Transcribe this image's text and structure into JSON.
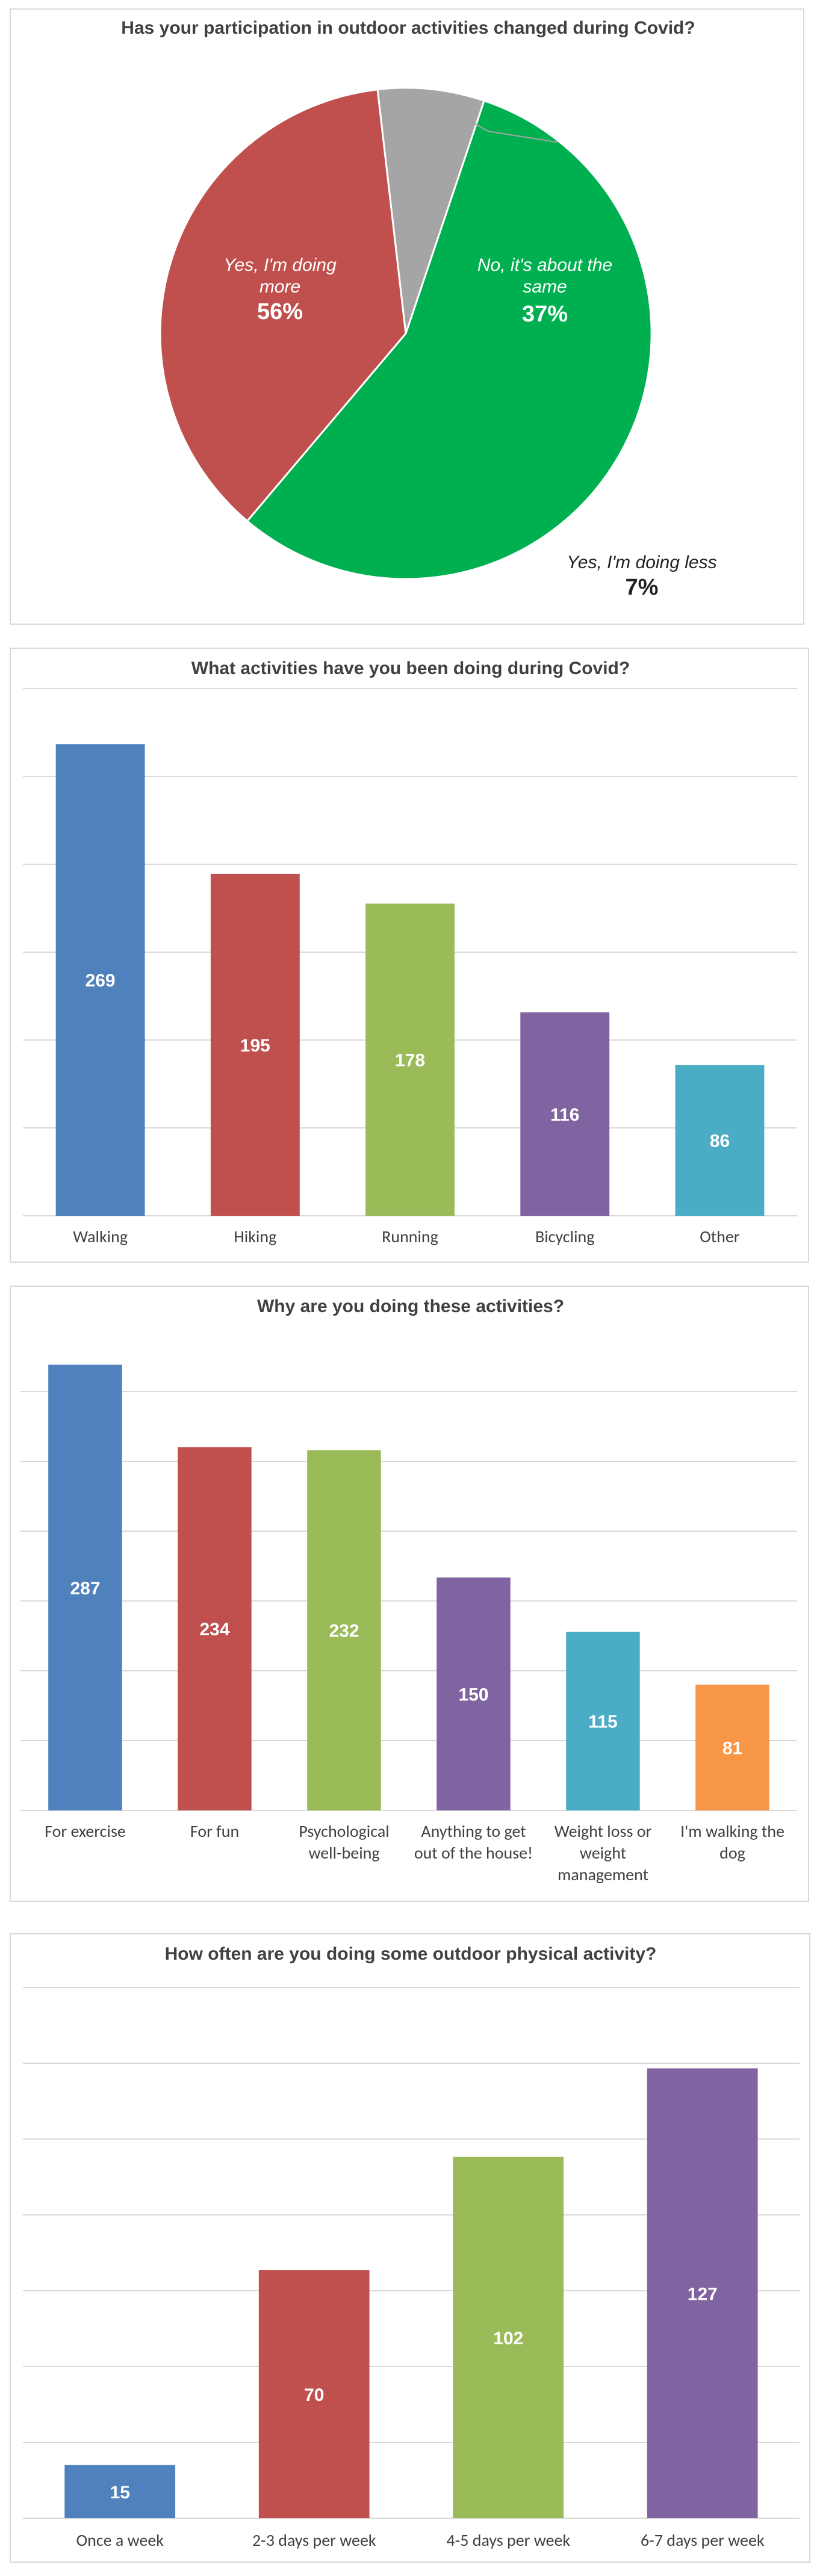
{
  "chart_data": [
    {
      "type": "pie",
      "title": "Has your participation in outdoor activities changed during Covid?",
      "slices": [
        {
          "label_lines": [
            "Yes, I'm doing",
            "more"
          ],
          "value": 56,
          "display": "56%",
          "color": "#00b050"
        },
        {
          "label_lines": [
            "No, it's about the",
            "same"
          ],
          "value": 37,
          "display": "37%",
          "color": "#c0504d"
        },
        {
          "label_lines": [
            "Yes, I'm doing less"
          ],
          "value": 7,
          "display": "7%",
          "color": "#a5a5a5"
        }
      ]
    },
    {
      "type": "bar",
      "title": "What activities have you been doing during Covid?",
      "categories": [
        [
          "Walking"
        ],
        [
          "Hiking"
        ],
        [
          "Running"
        ],
        [
          "Bicycling"
        ],
        [
          "Other"
        ]
      ],
      "values": [
        269,
        195,
        178,
        116,
        86
      ],
      "colors": [
        "#4f81bd",
        "#c0504d",
        "#9bbb59",
        "#8064a2",
        "#4bacc6"
      ],
      "ylim": [
        0,
        300
      ],
      "grid": true
    },
    {
      "type": "bar",
      "title": "Why are you doing these activities?",
      "categories": [
        [
          "For exercise"
        ],
        [
          "For fun"
        ],
        [
          "Psychological",
          "well-being"
        ],
        [
          "Anything to get",
          "out of the house!"
        ],
        [
          "Weight loss or",
          "weight",
          "management"
        ],
        [
          "I'm walking the",
          "dog"
        ]
      ],
      "values": [
        287,
        234,
        232,
        150,
        115,
        81
      ],
      "colors": [
        "#4f81bd",
        "#c0504d",
        "#9bbb59",
        "#8064a2",
        "#4bacc6",
        "#f79646"
      ],
      "ylim": [
        0,
        300
      ],
      "grid": true
    },
    {
      "type": "bar",
      "title": "How often are you doing some outdoor physical activity?",
      "categories": [
        [
          "Once a week"
        ],
        [
          "2-3 days per week"
        ],
        [
          "4-5 days per week"
        ],
        [
          "6-7 days per week"
        ]
      ],
      "values": [
        15,
        70,
        102,
        127
      ],
      "colors": [
        "#4f81bd",
        "#c0504d",
        "#9bbb59",
        "#8064a2"
      ],
      "ylim": [
        0,
        140
      ],
      "grid": true
    }
  ]
}
